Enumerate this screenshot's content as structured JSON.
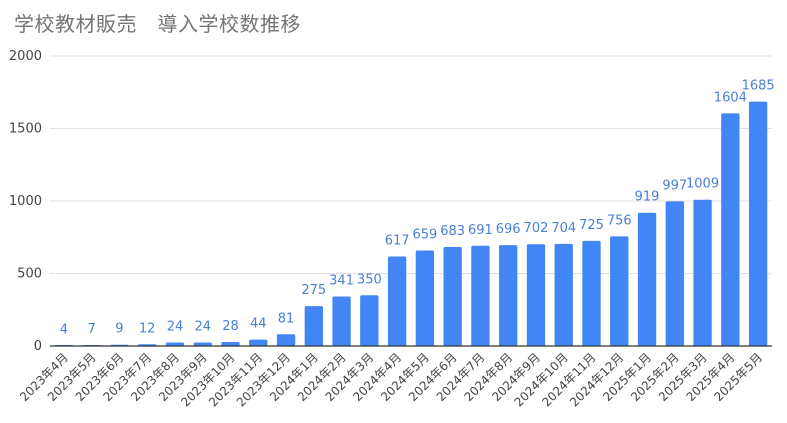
{
  "chart_data": {
    "type": "bar",
    "title": "学校教材販売　導入学校数推移",
    "xlabel": "",
    "ylabel": "",
    "ylim": [
      0,
      2000
    ],
    "yticks": [
      0,
      500,
      1000,
      1500,
      2000
    ],
    "grid": true,
    "legend": "none",
    "bar_color": "#4285f4",
    "label_color": "#4a7fd6",
    "categories": [
      "2023年4月",
      "2023年5月",
      "2023年6月",
      "2023年7月",
      "2023年8月",
      "2023年9月",
      "2023年10月",
      "2023年11月",
      "2023年12月",
      "2024年1月",
      "2024年2月",
      "2024年3月",
      "2024年4月",
      "2024年5月",
      "2024年6月",
      "2024年7月",
      "2024年8月",
      "2024年9月",
      "2024年10月",
      "2024年11月",
      "2024年12月",
      "2025年1月",
      "2025年2月",
      "2025年3月",
      "2025年4月",
      "2025年5月"
    ],
    "values": [
      4,
      7,
      9,
      12,
      24,
      24,
      28,
      44,
      81,
      275,
      341,
      350,
      617,
      659,
      683,
      691,
      696,
      702,
      704,
      725,
      756,
      919,
      997,
      1009,
      1604,
      1685
    ]
  }
}
